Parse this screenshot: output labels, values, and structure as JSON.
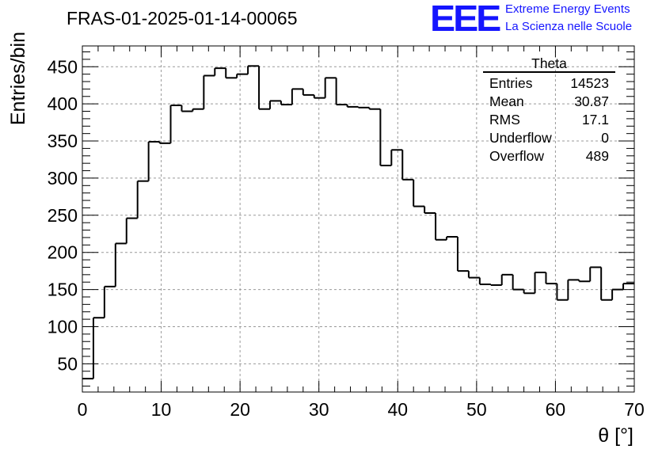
{
  "header": {
    "title": "FRAS-01-2025-01-14-00065",
    "logo_text": "EEE",
    "logo_line1": "Extreme Energy Events",
    "logo_line2": "La Scienza nelle Scuole"
  },
  "stats_box": {
    "title": "Theta",
    "rows": [
      {
        "label": "Entries",
        "value": "14523"
      },
      {
        "label": "Mean",
        "value": "30.87"
      },
      {
        "label": "RMS",
        "value": "17.1"
      },
      {
        "label": "Underflow",
        "value": "0"
      },
      {
        "label": "Overflow",
        "value": "489"
      }
    ]
  },
  "chart_data": {
    "type": "bar",
    "style": "step-histogram",
    "title": "FRAS-01-2025-01-14-00065",
    "xlabel": "θ [°]",
    "ylabel": "Entries/bin",
    "xlim": [
      0,
      70
    ],
    "ylim": [
      12,
      478
    ],
    "bin_width": 1.4,
    "bin_edges_start": 0,
    "x_ticks": [
      0,
      10,
      20,
      30,
      40,
      50,
      60,
      70
    ],
    "y_ticks": [
      50,
      100,
      150,
      200,
      250,
      300,
      350,
      400,
      450
    ],
    "grid": true,
    "line_color": "#000000",
    "values": [
      30,
      112,
      154,
      212,
      246,
      296,
      349,
      347,
      398,
      390,
      393,
      438,
      448,
      435,
      440,
      451,
      393,
      404,
      399,
      420,
      412,
      408,
      435,
      399,
      396,
      395,
      393,
      317,
      338,
      298,
      262,
      253,
      217,
      221,
      175,
      166,
      157,
      156,
      170,
      150,
      145,
      173,
      158,
      136,
      163,
      161,
      180,
      136,
      150,
      158
    ]
  }
}
